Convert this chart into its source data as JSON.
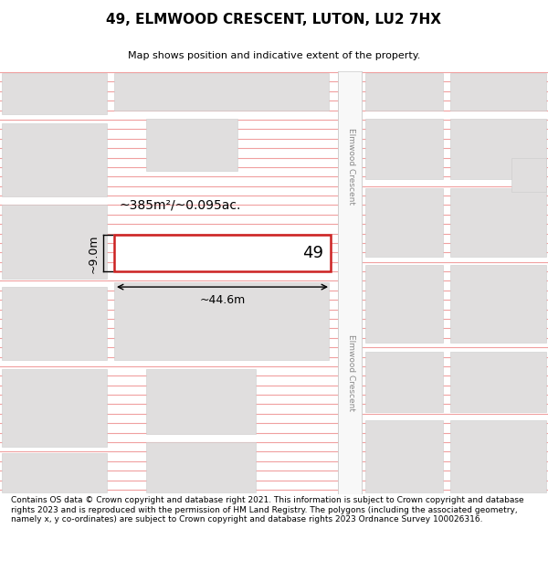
{
  "title": "49, ELMWOOD CRESCENT, LUTON, LU2 7HX",
  "subtitle": "Map shows position and indicative extent of the property.",
  "footer": "Contains OS data © Crown copyright and database right 2021. This information is subject to Crown copyright and database rights 2023 and is reproduced with the permission of HM Land Registry. The polygons (including the associated geometry, namely x, y co-ordinates) are subject to Crown copyright and database rights 2023 Ordnance Survey 100026316.",
  "road_label": "Elmwood Crescent",
  "area_label": "~385m²/~0.095ac.",
  "plot_number": "49",
  "dim_width": "~44.6m",
  "dim_height": "~9.0m",
  "map_bg": "#ffffff",
  "line_color": "#f0a0a0",
  "plot_fill": "#ffffff",
  "plot_border": "#cc2222",
  "building_fill": "#e0dede",
  "building_edge": "#cccccc",
  "road_strip_fill": "#ffffff",
  "road_strip_color": "#cccccc",
  "title_fontsize": 11,
  "subtitle_fontsize": 8,
  "footer_fontsize": 6.5
}
